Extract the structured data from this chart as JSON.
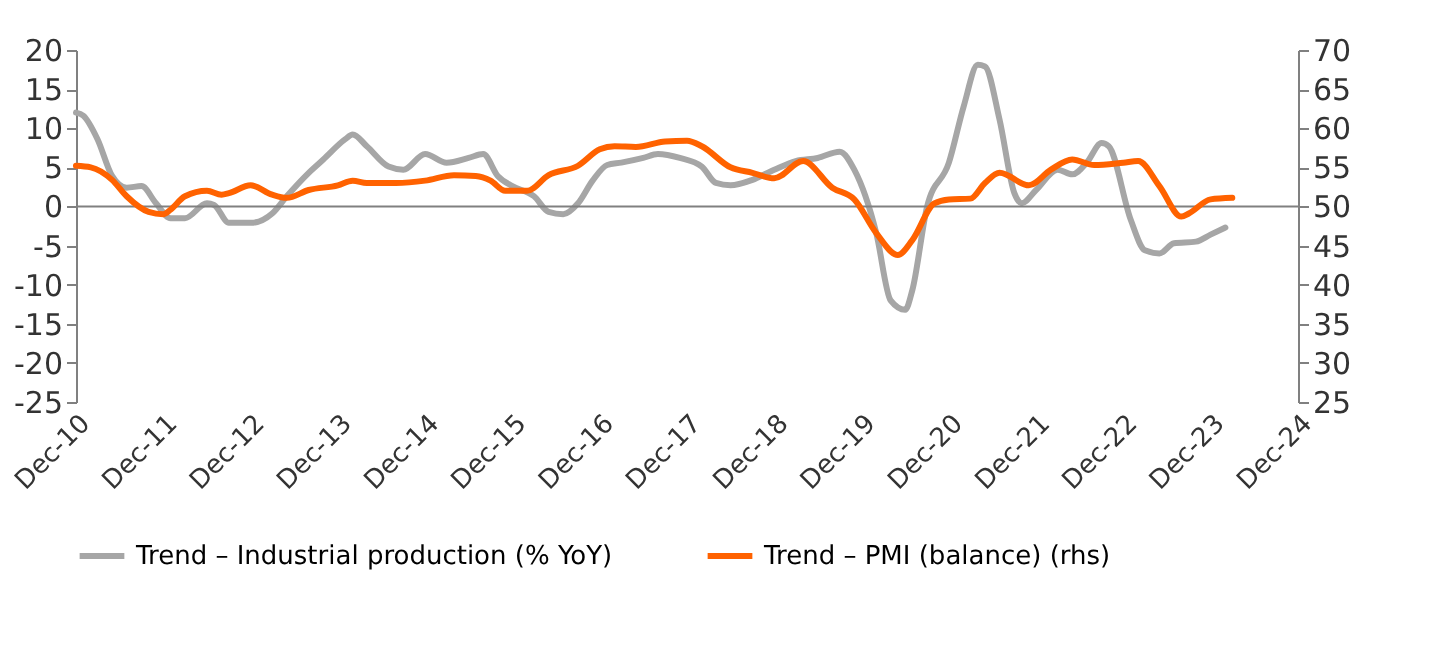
{
  "chart_data": {
    "type": "line",
    "xlim": [
      "2010-12",
      "2024-12"
    ],
    "xticks": [
      {
        "value": "2010-12",
        "label": "Dec-10"
      },
      {
        "value": "2011-12",
        "label": "Dec-11"
      },
      {
        "value": "2012-12",
        "label": "Dec-12"
      },
      {
        "value": "2013-12",
        "label": "Dec-13"
      },
      {
        "value": "2014-12",
        "label": "Dec-14"
      },
      {
        "value": "2015-12",
        "label": "Dec-15"
      },
      {
        "value": "2016-12",
        "label": "Dec-16"
      },
      {
        "value": "2017-12",
        "label": "Dec-17"
      },
      {
        "value": "2018-12",
        "label": "Dec-18"
      },
      {
        "value": "2019-12",
        "label": "Dec-19"
      },
      {
        "value": "2020-12",
        "label": "Dec-20"
      },
      {
        "value": "2021-12",
        "label": "Dec-21"
      },
      {
        "value": "2022-12",
        "label": "Dec-22"
      },
      {
        "value": "2023-12",
        "label": "Dec-23"
      },
      {
        "value": "2024-12",
        "label": "Dec-24"
      }
    ],
    "ylim": [
      -25,
      20
    ],
    "yticks": [
      -25,
      -20,
      -15,
      -10,
      -5,
      0,
      5,
      10,
      15,
      20
    ],
    "y2lim": [
      25,
      70
    ],
    "y2ticks": [
      25,
      30,
      35,
      40,
      45,
      50,
      55,
      60,
      65,
      70
    ],
    "ref_lines": [
      {
        "axis": "y",
        "value": 0,
        "color": "#808080"
      }
    ],
    "grid": false,
    "legend": "bottom",
    "marker": "none",
    "line_style": "solid",
    "series": [
      {
        "name": "Trend – Industrial production (% YoY)",
        "color": "#a6a6a6",
        "x": [
          "2010-12",
          "2011-01",
          "2011-03",
          "2011-05",
          "2011-07",
          "2011-09",
          "2011-11",
          "2012-01",
          "2012-03",
          "2012-06",
          "2012-07",
          "2012-09",
          "2012-12",
          "2013-03",
          "2013-05",
          "2013-08",
          "2013-10",
          "2014-01",
          "2014-02",
          "2014-04",
          "2014-07",
          "2014-09",
          "2014-12",
          "2015-03",
          "2015-06",
          "2015-08",
          "2015-10",
          "2015-12",
          "2016-03",
          "2016-05",
          "2016-07",
          "2016-09",
          "2016-11",
          "2017-01",
          "2017-03",
          "2017-06",
          "2017-08",
          "2017-11",
          "2018-02",
          "2018-04",
          "2018-06",
          "2018-09",
          "2018-12",
          "2019-03",
          "2019-06",
          "2019-09",
          "2019-11",
          "2020-02",
          "2020-04",
          "2020-06",
          "2020-07",
          "2020-09",
          "2020-12",
          "2021-02",
          "2021-04",
          "2021-05",
          "2021-07",
          "2021-09",
          "2021-10",
          "2021-12",
          "2022-03",
          "2022-05",
          "2022-07",
          "2022-09",
          "2022-10",
          "2023-01",
          "2023-03",
          "2023-05",
          "2023-07",
          "2023-10",
          "2023-12",
          "2024-02"
        ],
        "values": [
          12.0,
          11.6,
          8.6,
          3.9,
          2.4,
          2.6,
          0.4,
          -1.5,
          -1.5,
          0.4,
          0.2,
          -2.1,
          -2.1,
          -0.9,
          1.3,
          4.3,
          6.0,
          8.6,
          9.2,
          7.7,
          5.1,
          4.7,
          6.7,
          5.6,
          6.2,
          6.7,
          3.9,
          2.6,
          1.3,
          -0.7,
          -1.0,
          0.4,
          3.3,
          5.3,
          5.6,
          6.2,
          6.7,
          6.2,
          5.1,
          3.0,
          2.7,
          3.4,
          4.7,
          5.8,
          6.2,
          7.0,
          4.7,
          -3.4,
          -12.0,
          -13.2,
          -10.7,
          0.0,
          5.6,
          12.8,
          18.1,
          17.9,
          11.1,
          1.7,
          0.4,
          2.1,
          4.7,
          4.1,
          5.6,
          8.1,
          7.7,
          -1.7,
          -5.6,
          -6.0,
          -4.7,
          -4.5,
          -3.6,
          -2.7
        ]
      },
      {
        "name": "Trend – PMI (balance) (rhs)",
        "color": "#ff6200",
        "axis": "y2",
        "x": [
          "2010-12",
          "2011-02",
          "2011-05",
          "2011-07",
          "2011-10",
          "2011-12",
          "2012-01",
          "2012-03",
          "2012-06",
          "2012-08",
          "2012-09",
          "2012-12",
          "2013-03",
          "2013-05",
          "2013-08",
          "2013-12",
          "2014-02",
          "2014-04",
          "2014-08",
          "2014-12",
          "2015-04",
          "2015-07",
          "2015-09",
          "2015-11",
          "2016-02",
          "2016-05",
          "2016-09",
          "2016-12",
          "2017-02",
          "2017-05",
          "2017-09",
          "2017-12",
          "2018-02",
          "2018-06",
          "2018-09",
          "2018-12",
          "2019-04",
          "2019-08",
          "2019-11",
          "2020-02",
          "2020-05",
          "2020-07",
          "2020-10",
          "2020-12",
          "2021-03",
          "2021-05",
          "2021-07",
          "2021-11",
          "2022-02",
          "2022-05",
          "2022-08",
          "2022-12",
          "2023-02",
          "2023-05",
          "2023-08",
          "2023-09",
          "2023-12",
          "2024-03"
        ],
        "values": [
          55.2,
          55.0,
          53.4,
          51.3,
          49.3,
          49.0,
          49.6,
          51.3,
          52.0,
          51.5,
          51.7,
          52.7,
          51.5,
          51.1,
          52.1,
          52.7,
          53.3,
          53.0,
          53.0,
          53.3,
          54.0,
          53.9,
          53.3,
          52.0,
          52.0,
          54.0,
          55.2,
          57.3,
          57.7,
          57.6,
          58.3,
          58.4,
          57.7,
          55.0,
          54.3,
          53.6,
          55.8,
          52.4,
          50.9,
          46.6,
          43.8,
          45.7,
          50.4,
          50.9,
          51.0,
          53.0,
          54.3,
          52.7,
          54.7,
          56.0,
          55.3,
          55.6,
          55.8,
          52.6,
          48.7,
          49.1,
          50.9,
          51.1
        ]
      }
    ]
  }
}
